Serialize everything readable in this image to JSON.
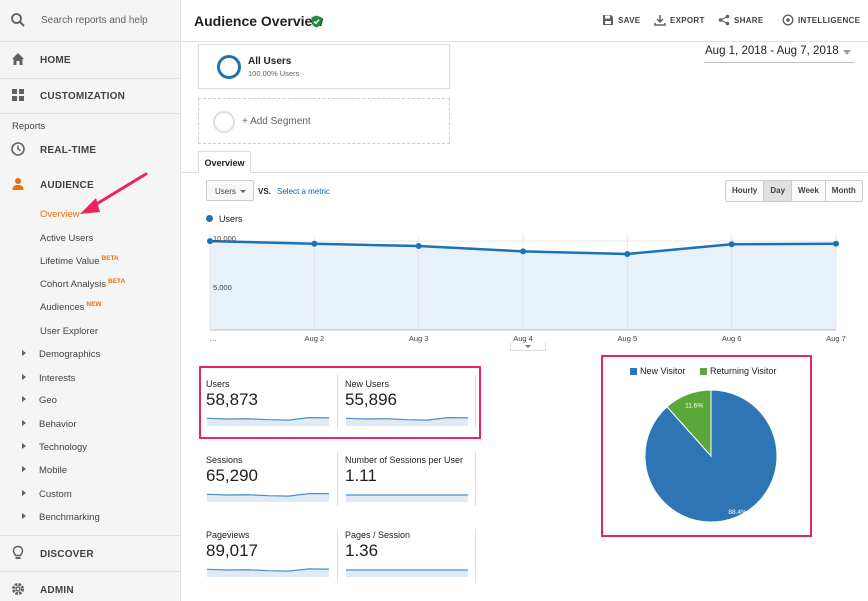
{
  "sidebar": {
    "search_placeholder": "Search reports and help",
    "home": "HOME",
    "customization": "CUSTOMIZATION",
    "reports_header": "Reports",
    "realtime": "REAL-TIME",
    "audience": "AUDIENCE",
    "audience_items": [
      {
        "label": "Overview",
        "badge": ""
      },
      {
        "label": "Active Users",
        "badge": ""
      },
      {
        "label": "Lifetime Value",
        "badge": "BETA"
      },
      {
        "label": "Cohort Analysis",
        "badge": "BETA"
      },
      {
        "label": "Audiences",
        "badge": "NEW"
      },
      {
        "label": "User Explorer",
        "badge": ""
      }
    ],
    "tree_items": [
      "Demographics",
      "Interests",
      "Geo",
      "Behavior",
      "Technology",
      "Mobile",
      "Custom",
      "Benchmarking"
    ],
    "discover": "DISCOVER",
    "admin": "ADMIN"
  },
  "header": {
    "title": "Audience Overview",
    "save": "SAVE",
    "export": "EXPORT",
    "share": "SHARE",
    "intelligence": "INTELLIGENCE"
  },
  "segment": {
    "name": "All Users",
    "pct": "100.00% Users",
    "add": "+ Add Segment"
  },
  "date_range": "Aug 1, 2018 - Aug 7, 2018",
  "tab": "Overview",
  "controls": {
    "metric": "Users",
    "vs": "VS.",
    "select_metric": "Select a metric",
    "granularity": [
      "Hourly",
      "Day",
      "Week",
      "Month"
    ],
    "selected_granularity": "Day"
  },
  "colors": {
    "accent": "#1a73b8",
    "pie_new": "#2e75b6",
    "pie_returning": "#5aa83a",
    "highlight": "#e8255f",
    "active_nav": "#e8710a"
  },
  "chart_data": [
    {
      "type": "area",
      "series": [
        {
          "name": "Users",
          "values": [
            10000,
            9700,
            9450,
            8850,
            8550,
            9650,
            9700
          ]
        }
      ],
      "categories": [
        "…",
        "Aug 2",
        "Aug 3",
        "Aug 4",
        "Aug 5",
        "Aug 6",
        "Aug 7"
      ],
      "yticks": [
        "10,000",
        "5,000"
      ],
      "ylim": [
        0,
        10800
      ],
      "grid": true
    },
    {
      "type": "pie",
      "series": [
        {
          "name": "New Visitor",
          "value": 88.4,
          "label": "88.4%"
        },
        {
          "name": "Returning Visitor",
          "value": 11.6,
          "label": "11.6%"
        }
      ],
      "legend": "top"
    }
  ],
  "metrics": [
    {
      "label": "Users",
      "value": "58,873",
      "spark": [
        0.55,
        0.5,
        0.52,
        0.45,
        0.42,
        0.6,
        0.58
      ]
    },
    {
      "label": "New Users",
      "value": "55,896",
      "spark": [
        0.55,
        0.5,
        0.52,
        0.45,
        0.42,
        0.6,
        0.58
      ]
    },
    {
      "label": "Sessions",
      "value": "65,290",
      "spark": [
        0.55,
        0.5,
        0.52,
        0.45,
        0.42,
        0.6,
        0.6
      ]
    },
    {
      "label": "Number of Sessions per User",
      "value": "1.11",
      "spark": [
        0.5,
        0.5,
        0.5,
        0.5,
        0.5,
        0.5,
        0.5
      ]
    },
    {
      "label": "Pageviews",
      "value": "89,017",
      "spark": [
        0.55,
        0.5,
        0.52,
        0.45,
        0.42,
        0.58,
        0.56
      ]
    },
    {
      "label": "Pages / Session",
      "value": "1.36",
      "spark": [
        0.5,
        0.5,
        0.5,
        0.5,
        0.5,
        0.5,
        0.5
      ]
    }
  ]
}
